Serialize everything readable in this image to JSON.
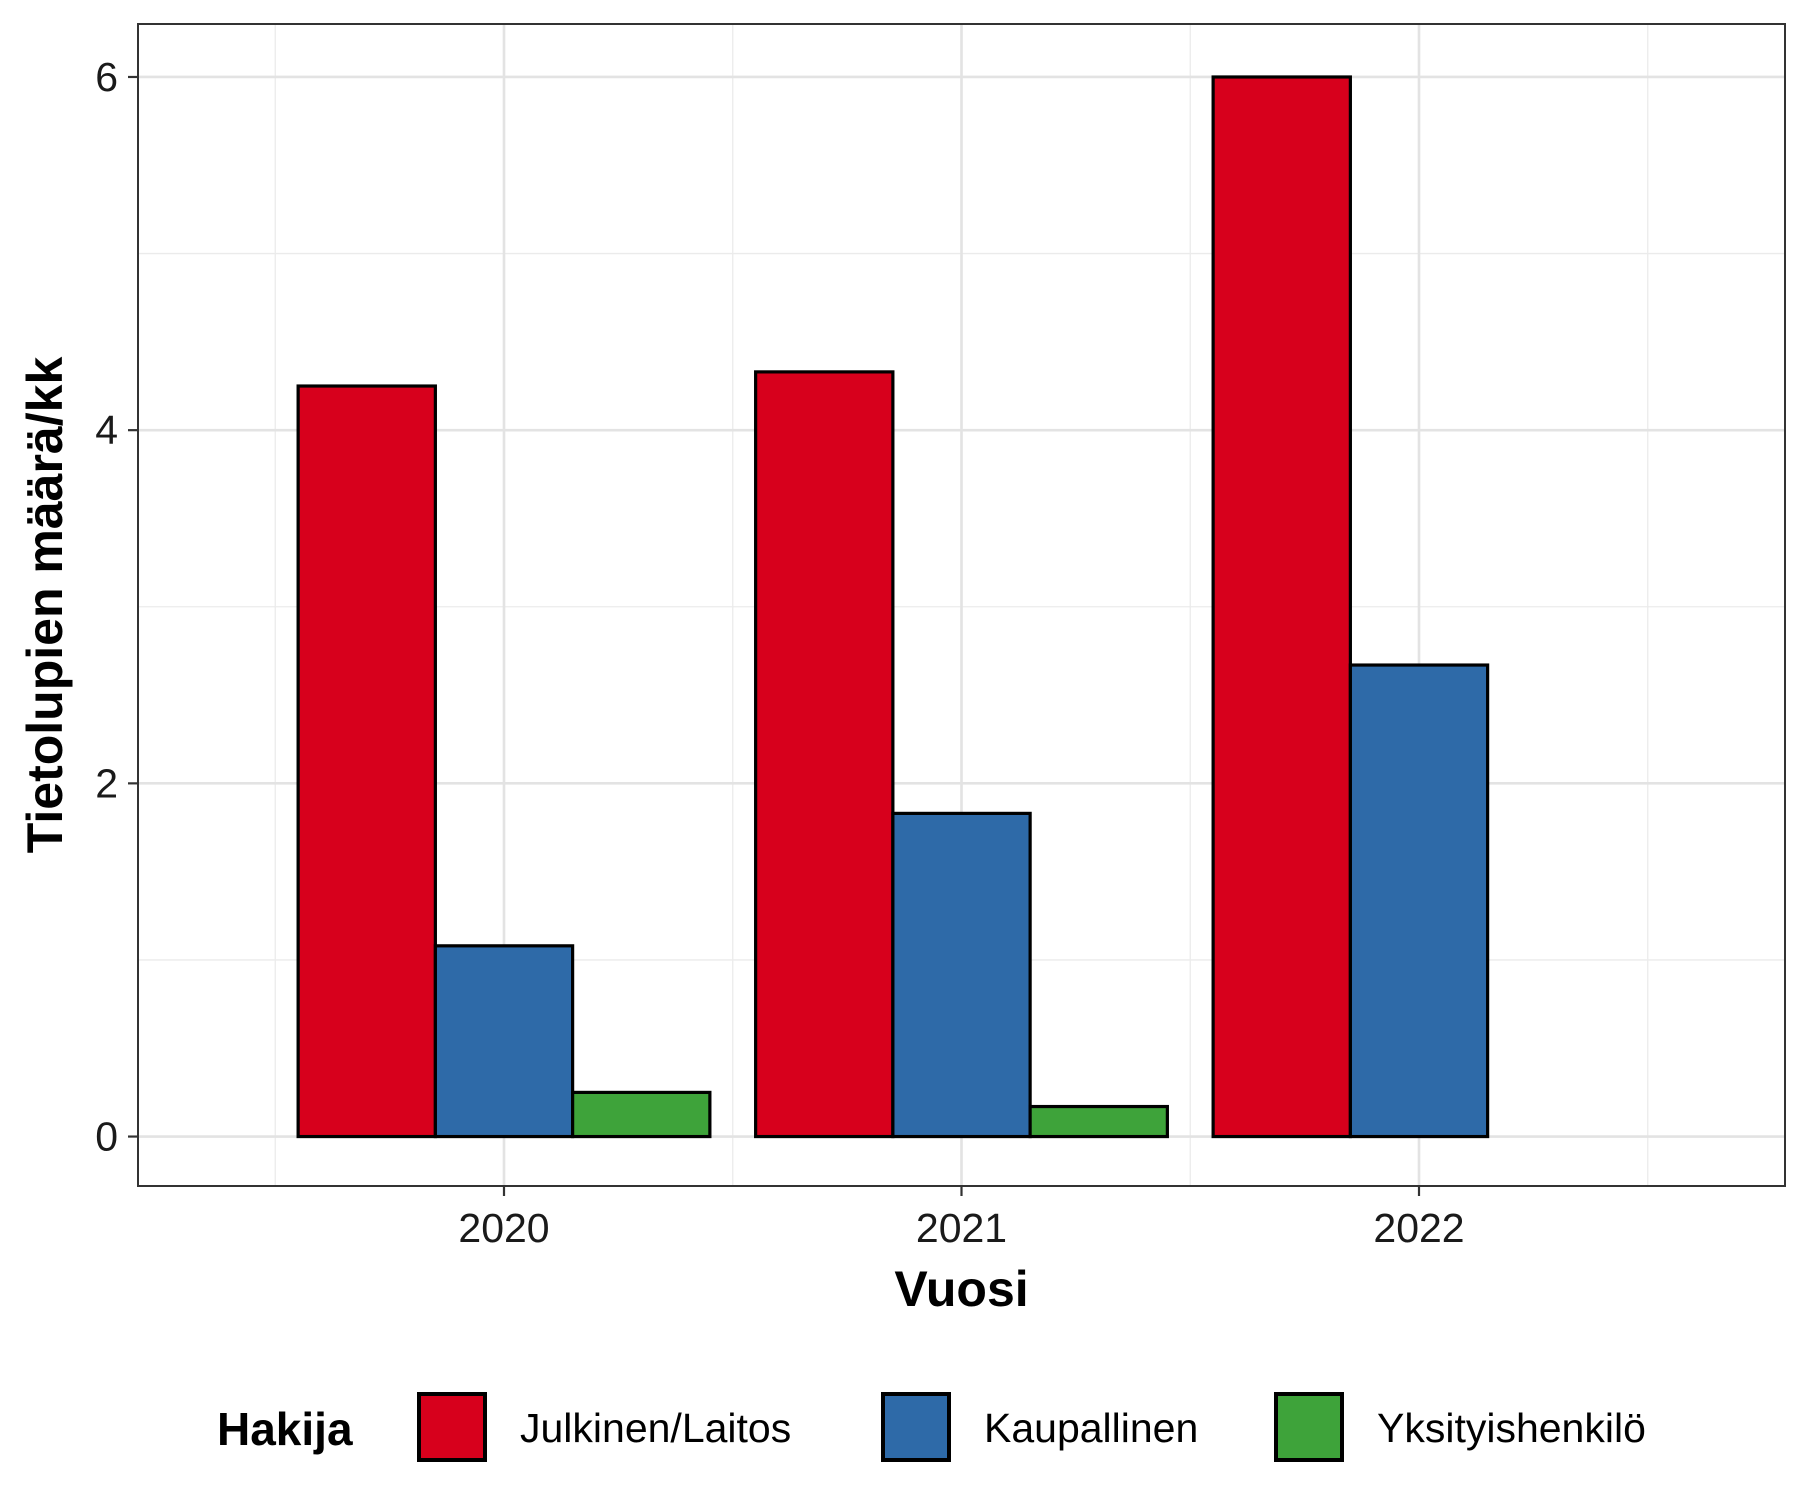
{
  "chart_data": {
    "type": "bar",
    "xlabel": "Vuosi",
    "ylabel": "Tietolupien määrä/kk",
    "categories": [
      "2020",
      "2021",
      "2022"
    ],
    "series": [
      {
        "name": "Julkinen/Laitos",
        "color": "#d7001c",
        "values": [
          4.25,
          4.33,
          6.0
        ]
      },
      {
        "name": "Kaupallinen",
        "color": "#2e6aa8",
        "values": [
          1.08,
          1.83,
          2.67
        ]
      },
      {
        "name": "Yksityishenkilö",
        "color": "#3ea33a",
        "values": [
          0.25,
          0.17,
          null
        ]
      }
    ],
    "ylim": [
      -0.28,
      6.3
    ],
    "yticks": [
      0,
      2,
      4,
      6
    ],
    "grid": true,
    "legend": {
      "title": "Hakija",
      "position": "bottom"
    }
  }
}
